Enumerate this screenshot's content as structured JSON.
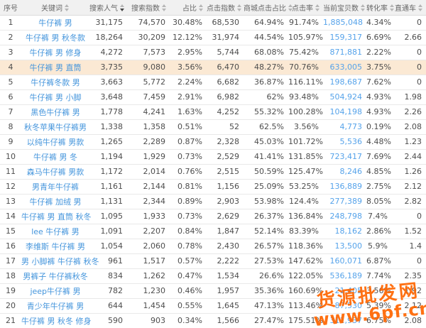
{
  "table": {
    "columns": [
      {
        "key": "index",
        "label": "序号",
        "sort": "none"
      },
      {
        "key": "keyword",
        "label": "关键词",
        "sort": "both"
      },
      {
        "key": "search-popularity",
        "label": "搜索人气",
        "sort": "desc"
      },
      {
        "key": "search-index",
        "label": "搜索指数",
        "sort": "both"
      },
      {
        "key": "share",
        "label": "占比",
        "sort": "both"
      },
      {
        "key": "click-index",
        "label": "点击指数",
        "sort": "both"
      },
      {
        "key": "mall-click-share",
        "label": "商城点击占比",
        "sort": "both"
      },
      {
        "key": "click-rate",
        "label": "点击率",
        "sort": "both"
      },
      {
        "key": "item-count",
        "label": "当前宝贝数",
        "sort": "both"
      },
      {
        "key": "conversion-rate",
        "label": "转化率",
        "sort": "both"
      },
      {
        "key": "zhitongche",
        "label": "直通车",
        "sort": "both"
      }
    ],
    "sorted_by": "搜索人气",
    "sort_direction": "desc"
  },
  "rows": [
    [
      "1",
      "牛仔裤 男",
      "31,175",
      "74,570",
      "30.48%",
      "68,530",
      "64.94%",
      "91.74%",
      "1,885,048",
      "4.34%",
      "0"
    ],
    [
      "2",
      "牛仔裤 男 秋冬款",
      "18,264",
      "30,209",
      "12.12%",
      "31,974",
      "44.54%",
      "105.97%",
      "159,317",
      "6.69%",
      "2.66"
    ],
    [
      "3",
      "牛仔裤 男 修身",
      "4,272",
      "7,573",
      "2.95%",
      "5,744",
      "68.08%",
      "75.42%",
      "871,881",
      "2.22%",
      "0"
    ],
    [
      "4",
      "牛仔裤 男 直筒",
      "3,735",
      "9,080",
      "3.56%",
      "6,470",
      "48.27%",
      "70.76%",
      "633,005",
      "3.75%",
      "0"
    ],
    [
      "5",
      "牛仔裤冬款 男",
      "3,663",
      "5,772",
      "2.24%",
      "6,682",
      "36.87%",
      "116.11%",
      "198,687",
      "7.62%",
      "0"
    ],
    [
      "6",
      "牛仔裤 男 小脚",
      "3,648",
      "7,459",
      "2.91%",
      "6,982",
      "62%",
      "93.48%",
      "504,924",
      "4.93%",
      "1.98"
    ],
    [
      "7",
      "黑色牛仔裤 男",
      "1,778",
      "4,241",
      "1.63%",
      "4,252",
      "55.32%",
      "100.28%",
      "104,198",
      "4.93%",
      "2.26"
    ],
    [
      "8",
      "秋冬苹果牛仔裤男",
      "1,338",
      "1,358",
      "0.51%",
      "52",
      "62.5%",
      "3.56%",
      "4,773",
      "0.19%",
      "2.08"
    ],
    [
      "9",
      "以纯牛仔裤 男款",
      "1,265",
      "2,289",
      "0.87%",
      "2,328",
      "45.03%",
      "101.72%",
      "5,536",
      "4.48%",
      "1.23"
    ],
    [
      "10",
      "牛仔裤 男 冬",
      "1,194",
      "1,929",
      "0.73%",
      "2,529",
      "41.41%",
      "131.85%",
      "723,417",
      "7.69%",
      "2.44"
    ],
    [
      "11",
      "森马牛仔裤 男款",
      "1,172",
      "2,014",
      "0.76%",
      "2,515",
      "50.59%",
      "125.47%",
      "8,246",
      "4.85%",
      "1.26"
    ],
    [
      "12",
      "男青年牛仔裤",
      "1,161",
      "2,144",
      "0.81%",
      "1,156",
      "25.09%",
      "53.25%",
      "136,889",
      "2.75%",
      "2.12"
    ],
    [
      "13",
      "牛仔裤 加绒 男",
      "1,131",
      "2,344",
      "0.89%",
      "2,903",
      "53.98%",
      "124.4%",
      "277,389",
      "8.05%",
      "2.82"
    ],
    [
      "14",
      "牛仔裤 男 直筒 秋冬",
      "1,095",
      "1,933",
      "0.73%",
      "2,629",
      "26.37%",
      "136.84%",
      "248,798",
      "7.4%",
      "0"
    ],
    [
      "15",
      "lee 牛仔裤 男",
      "1,091",
      "2,207",
      "0.84%",
      "1,847",
      "52.14%",
      "83.39%",
      "18,162",
      "2.86%",
      "1.52"
    ],
    [
      "16",
      "李维斯 牛仔裤 男",
      "1,054",
      "2,060",
      "0.78%",
      "2,430",
      "26.57%",
      "118.36%",
      "13,500",
      "5.9%",
      "1.4"
    ],
    [
      "17",
      "男 小脚裤 牛仔裤 秋冬",
      "961",
      "1,517",
      "0.57%",
      "2,222",
      "27.53%",
      "147.62%",
      "160,071",
      "6.87%",
      "0"
    ],
    [
      "18",
      "男裤子 牛仔裤秋冬",
      "834",
      "1,262",
      "0.47%",
      "1,534",
      "26.6%",
      "122.05%",
      "536,189",
      "7.74%",
      "2.35"
    ],
    [
      "19",
      "jeep牛仔裤 男",
      "782",
      "1,230",
      "0.46%",
      "1,957",
      "35.36%",
      "160.69%",
      "21,405",
      "3.56%",
      "1.92"
    ],
    [
      "20",
      "青少年牛仔裤 男",
      "644",
      "1,454",
      "0.55%",
      "1,645",
      "47.13%",
      "113.46%",
      "87,530",
      "5.39%",
      "2.12"
    ],
    [
      "21",
      "牛仔裤 男 秋冬 修身",
      "590",
      "903",
      "0.34%",
      "1,566",
      "27.47%",
      "175.51%",
      "311,937",
      "6.75%",
      "2.08"
    ]
  ],
  "highlighted_row": "4",
  "watermark": {
    "line1": "货源批发网",
    "line2": "www.6pf.cn"
  },
  "colors": {
    "header_bg": "#f1f1f1",
    "header_text": "#666666",
    "row_border": "#e9e9e9",
    "body_text": "#4d4d4d",
    "keyword_link": "#4495dc",
    "item_count_link": "#56a3ea",
    "highlight_row_bg": "#fbe9d4",
    "watermark_orange": "#ff6600"
  }
}
